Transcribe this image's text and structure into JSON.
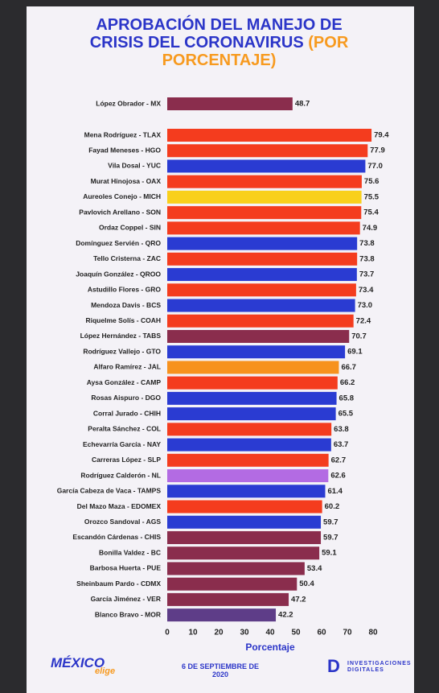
{
  "chart_data": {
    "type": "bar",
    "orientation": "horizontal",
    "title": "APROBACIÓN DEL MANEJO DE CRISIS DEL CORONAVIRUS",
    "subtitle": "(POR PORCENTAJE)",
    "x_label": "Porcentaje",
    "categories": [
      "López Obrador - MX",
      "Mena Rodríguez - TLAX",
      "Fayad Meneses - HGO",
      "Vila Dosal - YUC",
      "Murat Hinojosa - OAX",
      "Aureoles Conejo - MICH",
      "Pavlovich Arellano - SON",
      "Ordaz Coppel - SIN",
      "Domínguez Servién - QRO",
      "Tello Cristerna - ZAC",
      "Joaquín González - QROO",
      "Astudillo Flores - GRO",
      "Mendoza Davis - BCS",
      "Riquelme Solís - COAH",
      "López Hernández - TABS",
      "Rodríguez Vallejo - GTO",
      "Alfaro Ramírez - JAL",
      "Aysa González - CAMP",
      "Rosas Aispuro - DGO",
      "Corral Jurado - CHIH",
      "Peralta Sánchez - COL",
      "Echevarría García - NAY",
      "Carreras López - SLP",
      "Rodríguez Calderón - NL",
      "García Cabeza de Vaca - TAMPS",
      "Del Mazo Maza - EDOMEX",
      "Orozco Sandoval - AGS",
      "Escandón Cárdenas - CHIS",
      "Bonilla Valdez - BC",
      "Barbosa Huerta - PUE",
      "Sheinbaum Pardo - CDMX",
      "García Jiménez - VER",
      "Blanco Bravo - MOR"
    ],
    "values": [
      48.7,
      79.4,
      77.9,
      77.0,
      75.6,
      75.5,
      75.4,
      74.9,
      73.8,
      73.8,
      73.7,
      73.4,
      73.0,
      72.4,
      70.7,
      69.1,
      66.7,
      66.2,
      65.8,
      65.5,
      63.8,
      63.7,
      62.7,
      62.6,
      61.4,
      60.2,
      59.7,
      59.7,
      59.1,
      53.4,
      50.4,
      47.2,
      42.2
    ],
    "value_labels": [
      "48.7",
      "79.4",
      "77.9",
      "77.0",
      "75.6",
      "75.5",
      "75.4",
      "74.9",
      "73.8",
      "73.8",
      "73.7",
      "73.4",
      "73.0",
      "72.4",
      "70.7",
      "69.1",
      "66.7",
      "66.2",
      "65.8",
      "65.5",
      "63.8",
      "63.7",
      "62.7",
      "62.6",
      "61.4",
      "60.2",
      "59.7",
      "59.7",
      "59.1",
      "53.4",
      "50.4",
      "47.2",
      "42.2"
    ],
    "colors": [
      "#8a2d4d",
      "#f43c1e",
      "#f43c1e",
      "#2a3bd2",
      "#f43c1e",
      "#f9d01b",
      "#f43c1e",
      "#f43c1e",
      "#2a3bd2",
      "#f43c1e",
      "#2a3bd2",
      "#f43c1e",
      "#2a3bd2",
      "#f43c1e",
      "#8a2d4d",
      "#2a3bd2",
      "#f7921e",
      "#f43c1e",
      "#2a3bd2",
      "#2a3bd2",
      "#f43c1e",
      "#2a3bd2",
      "#f43c1e",
      "#b36be3",
      "#2a3bd2",
      "#f43c1e",
      "#2a3bd2",
      "#8a2d4d",
      "#8a2d4d",
      "#8a2d4d",
      "#8a2d4d",
      "#8a2d4d",
      "#5e3d88"
    ],
    "xlim": [
      0,
      80
    ],
    "xticks": [
      0,
      10,
      20,
      30,
      40,
      50,
      60,
      70,
      80
    ],
    "annotations": {
      "logo_left": "MÉXICO",
      "logo_left_sub": "elige",
      "date": "6 DE SEPTIEMBRE DE 2020",
      "logo_right": "INVESTIGACIONES DIGITALES"
    }
  }
}
